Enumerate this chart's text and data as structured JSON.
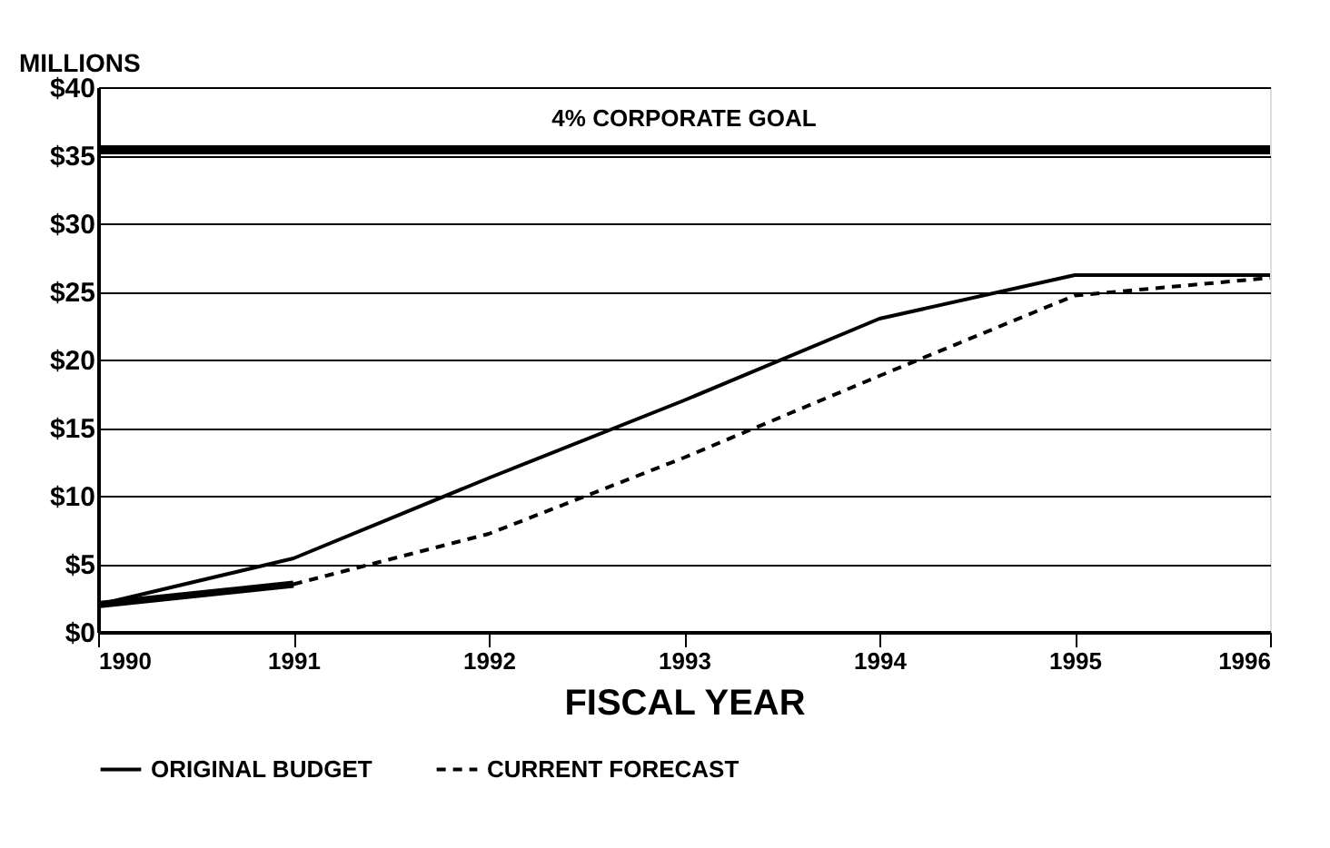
{
  "chart_data": {
    "type": "line",
    "ylabel": "MILLIONS",
    "xlabel": "FISCAL YEAR",
    "x": [
      1990,
      1991,
      1992,
      1993,
      1994,
      1995,
      1996
    ],
    "series": [
      {
        "name": "ORIGINAL BUDGET",
        "color": "#000000",
        "line_style": "solid",
        "values": [
          2,
          5.4,
          11.3,
          17,
          23,
          26.2,
          26.2
        ]
      },
      {
        "name": "CURRENT FORECAST",
        "color": "#000000",
        "line_style": "dashed",
        "values": [
          2,
          3.5,
          7.2,
          12.8,
          18.8,
          24.7,
          26
        ]
      },
      {
        "color": "#000000",
        "line_style": "solid",
        "values": [
          2,
          3.5,
          null,
          null,
          null,
          null,
          null
        ]
      }
    ],
    "xlim": [
      1990,
      1996
    ],
    "xticks": [
      1990,
      1991,
      1992,
      1993,
      1994,
      1995,
      1996
    ],
    "ylim": [
      0,
      40
    ],
    "yticks": [
      {
        "value": 0,
        "label": "$0"
      },
      {
        "value": 5,
        "label": "$5"
      },
      {
        "value": 10,
        "label": "$10"
      },
      {
        "value": 15,
        "label": "$15"
      },
      {
        "value": 20,
        "label": "$20"
      },
      {
        "value": 25,
        "label": "$25"
      },
      {
        "value": 30,
        "label": "$30"
      },
      {
        "value": 35,
        "label": "$35"
      },
      {
        "value": 40,
        "label": "$40"
      }
    ],
    "ref_lines": [
      {
        "axis": "y",
        "value": 35.4,
        "label": "4% CORPORATE GOAL",
        "color": "#000000"
      }
    ],
    "grid": "y",
    "legend": "bottom",
    "marker": "none"
  }
}
